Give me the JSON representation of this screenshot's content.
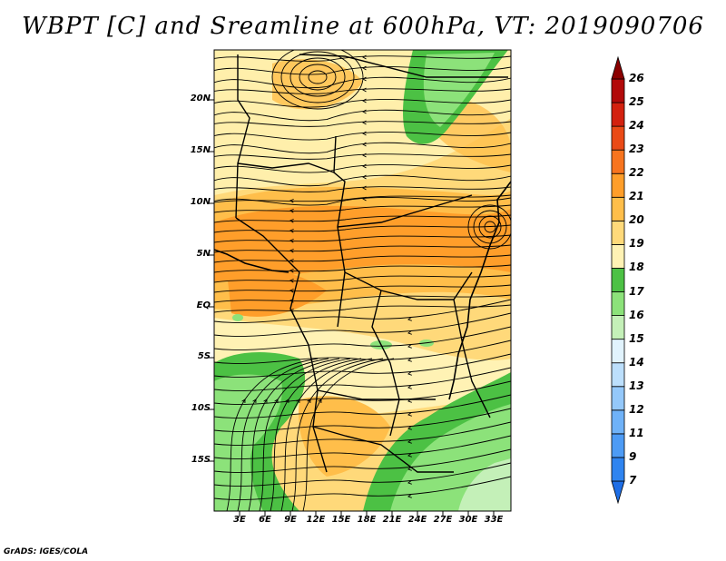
{
  "title": "WBPT [C] and Sreamline at 600hPa, VT: 2019090706",
  "footer": "GrADS: IGES/COLA",
  "map": {
    "variable": "Wet-bulb potential temperature",
    "units": "C",
    "level": "600hPa",
    "valid_time": "2019090706",
    "lat_labels": [
      "20N",
      "15N",
      "10N",
      "5N",
      "EQ",
      "5S",
      "10S",
      "15S"
    ],
    "lon_labels": [
      "3E",
      "6E",
      "9E",
      "12E",
      "15E",
      "18E",
      "21E",
      "24E",
      "27E",
      "30E",
      "33E"
    ]
  },
  "colorbar": {
    "levels": [
      "7",
      "9",
      "11",
      "12",
      "13",
      "14",
      "15",
      "16",
      "17",
      "18",
      "19",
      "20",
      "21",
      "22",
      "23",
      "24",
      "25",
      "26"
    ],
    "colors": [
      "#1e6ee6",
      "#2f84f0",
      "#4d9bf5",
      "#6fb2f8",
      "#94c8fa",
      "#bcdffc",
      "#e1f3fd",
      "#c4f0b8",
      "#8ce27a",
      "#4cc144",
      "#fff2b4",
      "#ffd97a",
      "#ffbe4a",
      "#ff9e2a",
      "#f7741e",
      "#ea4a16",
      "#d3210f",
      "#b20a0a",
      "#8b0000"
    ]
  }
}
